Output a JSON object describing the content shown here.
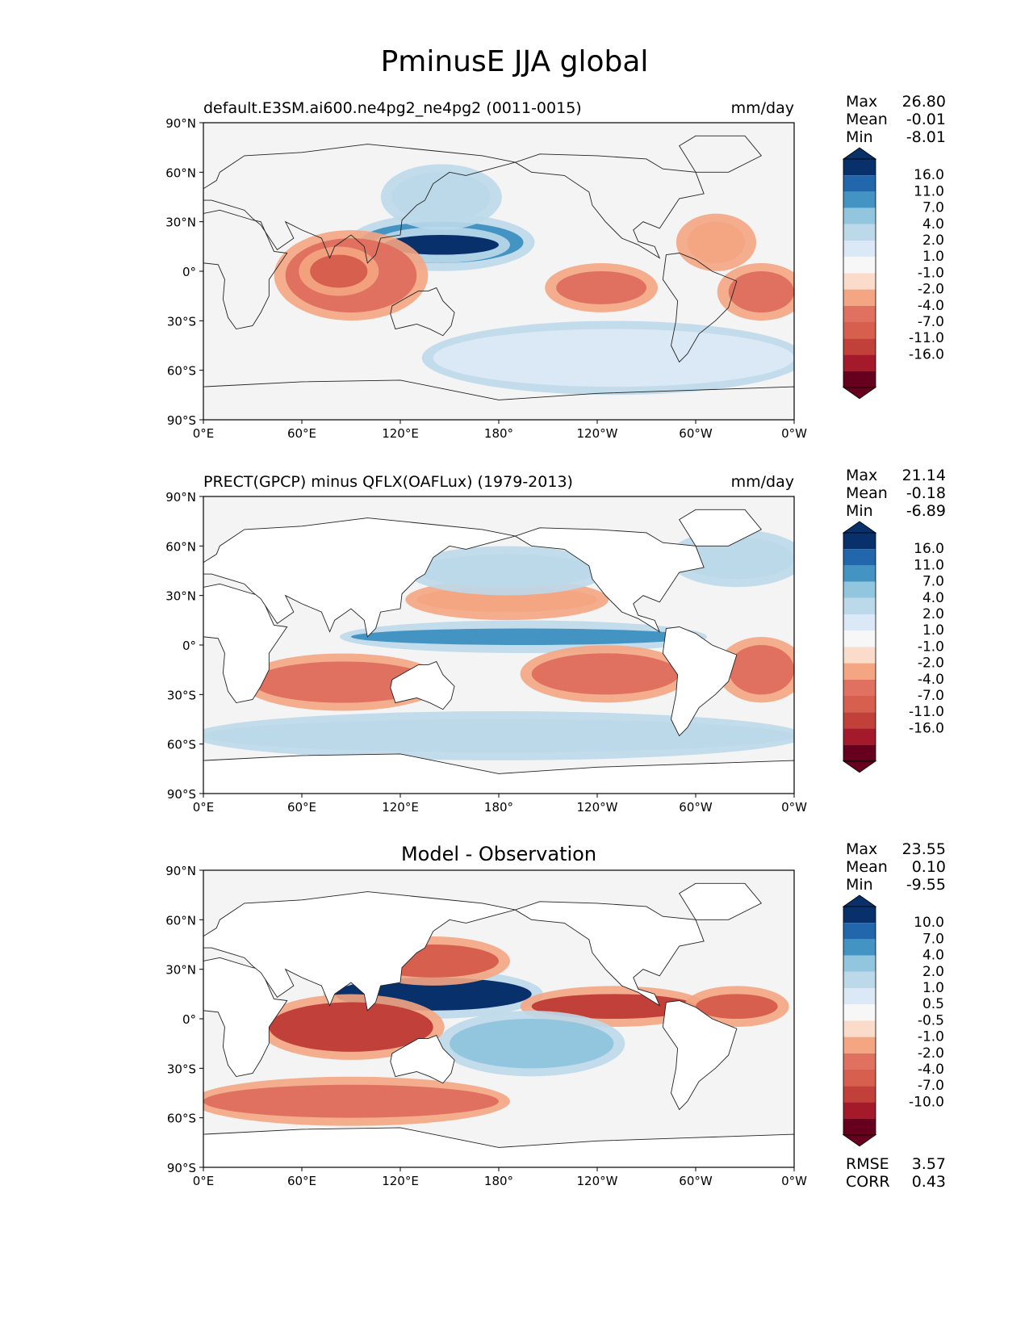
{
  "title": "PminusE JJA global",
  "colors": {
    "ocean_bg": "#f4f4f4",
    "land": "#ffffff",
    "reds": [
      "#fbdccb",
      "#f4a582",
      "#e07160",
      "#d6604d",
      "#c1403a",
      "#a51a2b",
      "#67001f"
    ],
    "blues": [
      "#dbe9f6",
      "#bcd9ea",
      "#92c5de",
      "#4393c3",
      "#2266ac",
      "#08306b"
    ]
  },
  "panels": [
    {
      "id": "model",
      "left_title": "default.E3SM.ai600.ne4pg2_ne4pg2 (0011-0015)",
      "center_title": "",
      "units": "mm/day",
      "stats": [
        {
          "label": "Max",
          "value": "26.80"
        },
        {
          "label": "Mean",
          "value": "-0.01"
        },
        {
          "label": "Min",
          "value": "-8.01"
        }
      ],
      "colorbar_ticks": [
        "16.0",
        "11.0",
        "7.0",
        "4.0",
        "2.0",
        "1.0",
        "-1.0",
        "-2.0",
        "-4.0",
        "-7.0",
        "-11.0",
        "-16.0"
      ],
      "extra_stats": []
    },
    {
      "id": "obs",
      "left_title": "PRECT(GPCP) minus QFLX(OAFLux) (1979-2013)",
      "center_title": "",
      "units": "mm/day",
      "stats": [
        {
          "label": "Max",
          "value": "21.14"
        },
        {
          "label": "Mean",
          "value": "-0.18"
        },
        {
          "label": "Min",
          "value": "-6.89"
        }
      ],
      "colorbar_ticks": [
        "16.0",
        "11.0",
        "7.0",
        "4.0",
        "2.0",
        "1.0",
        "-1.0",
        "-2.0",
        "-4.0",
        "-7.0",
        "-11.0",
        "-16.0"
      ],
      "extra_stats": []
    },
    {
      "id": "diff",
      "left_title": "",
      "center_title": "Model - Observation",
      "units": "",
      "stats": [
        {
          "label": "Max",
          "value": "23.55"
        },
        {
          "label": "Mean",
          "value": "0.10"
        },
        {
          "label": "Min",
          "value": "-9.55"
        }
      ],
      "colorbar_ticks": [
        "10.0",
        "7.0",
        "4.0",
        "2.0",
        "1.0",
        "0.5",
        "-0.5",
        "-1.0",
        "-2.0",
        "-4.0",
        "-7.0",
        "-10.0"
      ],
      "extra_stats": [
        {
          "label": "RMSE",
          "value": "3.57"
        },
        {
          "label": "CORR",
          "value": "0.43"
        }
      ]
    }
  ],
  "axes": {
    "y_ticks": [
      "90°N",
      "60°N",
      "30°N",
      "0°",
      "30°S",
      "60°S",
      "90°S"
    ],
    "x_ticks": [
      "0°E",
      "60°E",
      "120°E",
      "180°",
      "120°W",
      "60°W",
      "0°W"
    ]
  },
  "chart_data": [
    {
      "type": "heatmap",
      "title": "default.E3SM.ai600.ne4pg2_ne4pg2 (0011-0015)",
      "units": "mm/day",
      "xlim": [
        0,
        360
      ],
      "ylim": [
        -90,
        90
      ],
      "levels": [
        -16,
        -11,
        -7,
        -4,
        -2,
        -1,
        1,
        2,
        4,
        7,
        11,
        16
      ],
      "features": [
        {
          "lon": [
            95,
            195
          ],
          "lat": [
            5,
            30
          ],
          "level": 7
        },
        {
          "lon": [
            110,
            180
          ],
          "lat": [
            10,
            22
          ],
          "level": 16
        },
        {
          "lon": [
            115,
            175
          ],
          "lat": [
            30,
            60
          ],
          "level": 2
        },
        {
          "lon": [
            50,
            130
          ],
          "lat": [
            -25,
            20
          ],
          "level": -4
        },
        {
          "lon": [
            65,
            100
          ],
          "lat": [
            -10,
            10
          ],
          "level": -7
        },
        {
          "lon": [
            215,
            270
          ],
          "lat": [
            -20,
            0
          ],
          "level": -4
        },
        {
          "lon": [
            320,
            360
          ],
          "lat": [
            -25,
            0
          ],
          "level": -4
        },
        {
          "lon": [
            295,
            330
          ],
          "lat": [
            5,
            30
          ],
          "level": -2
        },
        {
          "lon": [
            140,
            360
          ],
          "lat": [
            -70,
            -35
          ],
          "level": 1
        }
      ]
    },
    {
      "type": "heatmap",
      "title": "PRECT(GPCP) minus QFLX(OAFLux) (1979-2013)",
      "units": "mm/day",
      "xlim": [
        0,
        360
      ],
      "ylim": [
        -90,
        90
      ],
      "levels": [
        -16,
        -11,
        -7,
        -4,
        -2,
        -1,
        1,
        2,
        4,
        7,
        11,
        16
      ],
      "features": [
        {
          "lon": [
            90,
            300
          ],
          "lat": [
            0,
            10
          ],
          "level": 7
        },
        {
          "lon": [
            130,
            240
          ],
          "lat": [
            20,
            35
          ],
          "level": -2
        },
        {
          "lon": [
            30,
            140
          ],
          "lat": [
            -35,
            -10
          ],
          "level": -4
        },
        {
          "lon": [
            200,
            290
          ],
          "lat": [
            -30,
            -5
          ],
          "level": -4
        },
        {
          "lon": [
            320,
            360
          ],
          "lat": [
            -30,
            0
          ],
          "level": -4
        },
        {
          "lon": [
            0,
            360
          ],
          "lat": [
            -65,
            -45
          ],
          "level": 2
        },
        {
          "lon": [
            130,
            240
          ],
          "lat": [
            35,
            55
          ],
          "level": 2
        },
        {
          "lon": [
            290,
            360
          ],
          "lat": [
            40,
            65
          ],
          "level": 2
        }
      ]
    },
    {
      "type": "heatmap",
      "title": "Model - Observation",
      "units": "mm/day",
      "xlim": [
        0,
        360
      ],
      "ylim": [
        -90,
        90
      ],
      "levels": [
        -10,
        -7,
        -4,
        -2,
        -1,
        -0.5,
        0.5,
        1,
        2,
        4,
        7,
        10
      ],
      "features": [
        {
          "lon": [
            80,
            200
          ],
          "lat": [
            5,
            25
          ],
          "level": 10
        },
        {
          "lon": [
            100,
            180
          ],
          "lat": [
            25,
            45
          ],
          "level": -4
        },
        {
          "lon": [
            40,
            140
          ],
          "lat": [
            -20,
            10
          ],
          "level": -7
        },
        {
          "lon": [
            200,
            300
          ],
          "lat": [
            0,
            15
          ],
          "level": -7
        },
        {
          "lon": [
            300,
            350
          ],
          "lat": [
            0,
            15
          ],
          "level": -4
        },
        {
          "lon": [
            150,
            250
          ],
          "lat": [
            -30,
            0
          ],
          "level": 2
        },
        {
          "lon": [
            0,
            180
          ],
          "lat": [
            -60,
            -40
          ],
          "level": -2
        }
      ]
    }
  ]
}
